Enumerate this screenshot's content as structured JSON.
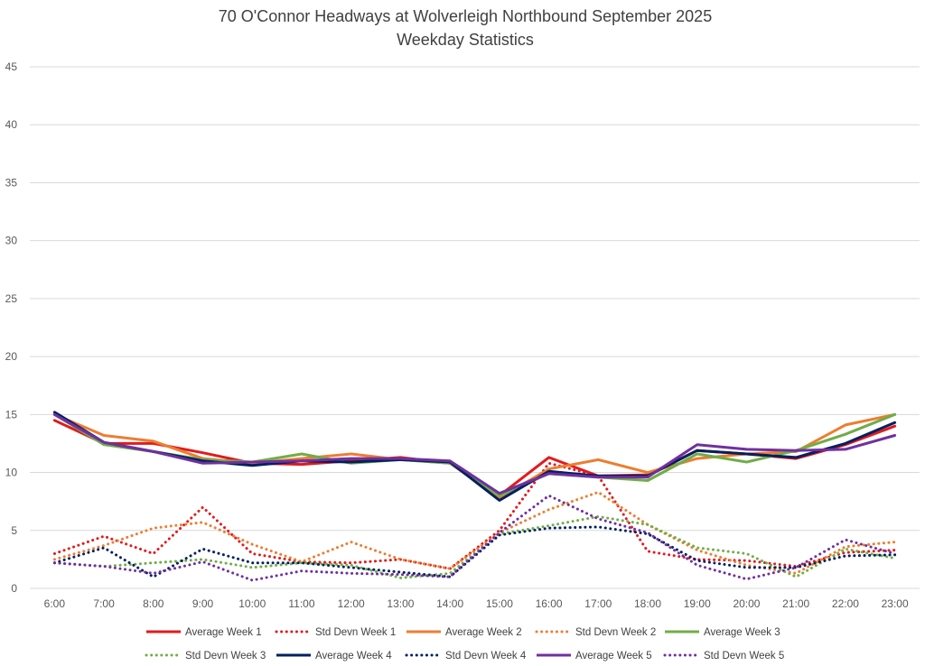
{
  "chart_data": {
    "type": "line",
    "title": "70 O'Connor Headways at Wolverleigh Northbound September 2025",
    "subtitle": "Weekday Statistics",
    "xlabel": "",
    "ylabel": "",
    "ylim": [
      0,
      45
    ],
    "y_ticks": [
      0,
      5,
      10,
      15,
      20,
      25,
      30,
      35,
      40,
      45
    ],
    "grid": true,
    "legend_position": "bottom",
    "categories": [
      "6:00",
      "7:00",
      "8:00",
      "9:00",
      "10:00",
      "11:00",
      "12:00",
      "13:00",
      "14:00",
      "15:00",
      "16:00",
      "17:00",
      "18:00",
      "19:00",
      "20:00",
      "21:00",
      "22:00",
      "23:00"
    ],
    "series": [
      {
        "name": "Average Week 1",
        "style": "solid",
        "color": "#e31a1c",
        "values": [
          14.5,
          12.5,
          12.5,
          11.7,
          10.8,
          10.7,
          11.0,
          11.3,
          10.8,
          8.0,
          11.3,
          9.7,
          9.8,
          11.9,
          11.6,
          11.2,
          12.4,
          14.0
        ]
      },
      {
        "name": "Std Devn Week 1",
        "style": "dotted",
        "color": "#e31a1c",
        "values": [
          3.0,
          4.5,
          3.0,
          7.0,
          3.0,
          2.3,
          2.2,
          2.5,
          1.7,
          5.0,
          10.8,
          9.7,
          3.2,
          2.5,
          2.4,
          1.9,
          3.1,
          3.3
        ]
      },
      {
        "name": "Average Week 2",
        "style": "solid",
        "color": "#ed7d31",
        "values": [
          15.0,
          13.2,
          12.7,
          11.2,
          10.8,
          11.2,
          11.6,
          11.1,
          10.8,
          7.8,
          10.3,
          11.1,
          10.0,
          11.2,
          11.6,
          11.8,
          14.1,
          15.0
        ]
      },
      {
        "name": "Std Devn Week 2",
        "style": "dotted",
        "color": "#ed7d31",
        "values": [
          2.5,
          3.7,
          5.2,
          5.7,
          3.8,
          2.3,
          4.0,
          2.5,
          1.7,
          4.8,
          6.8,
          8.3,
          5.5,
          3.3,
          2.0,
          1.3,
          3.6,
          4.0
        ]
      },
      {
        "name": "Average Week 3",
        "style": "solid",
        "color": "#70ad47",
        "values": [
          15.0,
          12.4,
          11.8,
          11.1,
          10.9,
          11.6,
          10.8,
          11.1,
          10.8,
          8.0,
          9.9,
          9.6,
          9.3,
          11.6,
          10.9,
          11.9,
          13.3,
          15.0
        ]
      },
      {
        "name": "Std Devn Week 3",
        "style": "dotted",
        "color": "#70ad47",
        "values": [
          2.2,
          1.9,
          2.2,
          2.5,
          1.8,
          2.2,
          2.0,
          0.9,
          1.3,
          4.7,
          5.4,
          6.2,
          5.5,
          3.5,
          3.0,
          1.0,
          3.4,
          2.6
        ]
      },
      {
        "name": "Average Week 4",
        "style": "solid",
        "color": "#002060",
        "values": [
          15.2,
          12.6,
          11.8,
          11.0,
          10.6,
          11.0,
          10.9,
          11.1,
          10.9,
          7.6,
          10.1,
          9.7,
          9.7,
          11.9,
          11.6,
          11.3,
          12.5,
          14.3
        ]
      },
      {
        "name": "Std Devn Week 4",
        "style": "dotted",
        "color": "#002060",
        "values": [
          2.2,
          3.5,
          1.0,
          3.4,
          2.2,
          2.2,
          1.8,
          1.4,
          1.0,
          4.6,
          5.2,
          5.3,
          4.7,
          2.4,
          1.8,
          1.8,
          2.8,
          2.9
        ]
      },
      {
        "name": "Average Week 5",
        "style": "solid",
        "color": "#7030a0",
        "values": [
          15.0,
          12.6,
          11.8,
          10.8,
          10.9,
          11.0,
          11.2,
          11.2,
          11.0,
          8.2,
          9.9,
          9.6,
          9.6,
          12.4,
          12.0,
          11.9,
          12.0,
          13.2
        ]
      },
      {
        "name": "Std Devn Week 5",
        "style": "dotted",
        "color": "#7030a0",
        "values": [
          2.2,
          1.9,
          1.3,
          2.3,
          0.7,
          1.5,
          1.3,
          1.2,
          1.0,
          4.8,
          8.0,
          6.0,
          4.8,
          2.0,
          0.8,
          1.8,
          4.2,
          3.0
        ]
      }
    ]
  }
}
